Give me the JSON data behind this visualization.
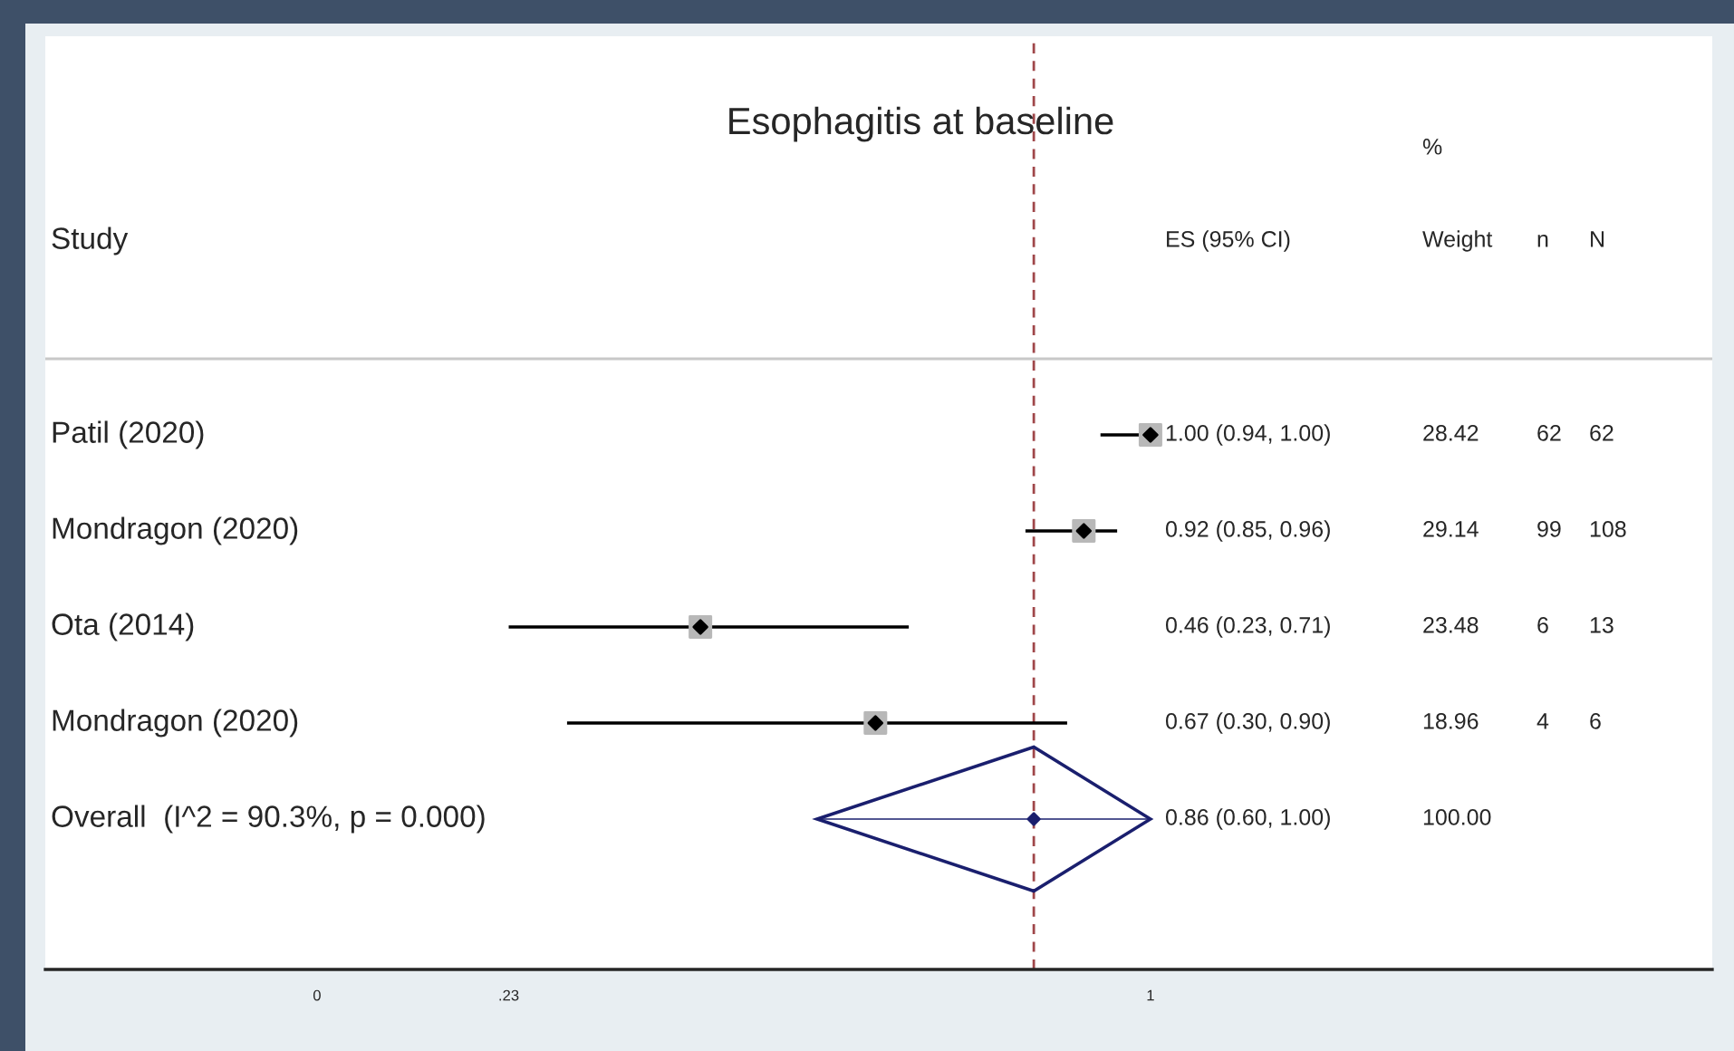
{
  "chart_data": {
    "type": "scatter",
    "orientation": "horizontal",
    "title": "Esophagitis at baseline",
    "ylabel": "Study",
    "categories": [
      "Patil (2020)",
      "Mondragon (2020)",
      "Ota (2014)",
      "Mondragon (2020)",
      "Overall  (I^2 = 90.3%, p = 0.000)"
    ],
    "series": [
      {
        "marker": "diamond",
        "color": "#000000",
        "values": [
          1.0,
          0.92,
          0.46,
          0.67,
          null
        ],
        "errors": [
          [
            0.94,
            1.0
          ],
          [
            0.85,
            0.96
          ],
          [
            0.23,
            0.71
          ],
          [
            0.3,
            0.9
          ],
          null
        ]
      },
      {
        "marker": "diamond",
        "color": "#1a1f6e",
        "values": [
          null,
          null,
          null,
          null,
          0.86
        ],
        "errors": [
          null,
          null,
          null,
          null,
          [
            0.6,
            1.0
          ]
        ]
      }
    ],
    "xlim": [
      -0.326,
      1.674
    ],
    "xticks": [
      0,
      {
        "value": 0.23,
        "label": ".23"
      },
      1
    ],
    "tick_labels": "x",
    "ref_lines": [
      {
        "axis": "x",
        "value": 0.86,
        "color": "#a0474a",
        "line_style": "dashed"
      }
    ],
    "annotations": [
      "ES (95% CI)",
      "%",
      "Weight",
      "n",
      "N",
      "1.00 (0.94, 1.00)",
      "28.42",
      "62",
      "62",
      "0.92 (0.85, 0.96)",
      "29.14",
      "99",
      "108",
      "0.46 (0.23, 0.71)",
      "23.48",
      "6",
      "13",
      "0.67 (0.30, 0.90)",
      "18.96",
      "4",
      "6",
      "0.86 (0.60, 1.00)",
      "100.00"
    ]
  }
}
